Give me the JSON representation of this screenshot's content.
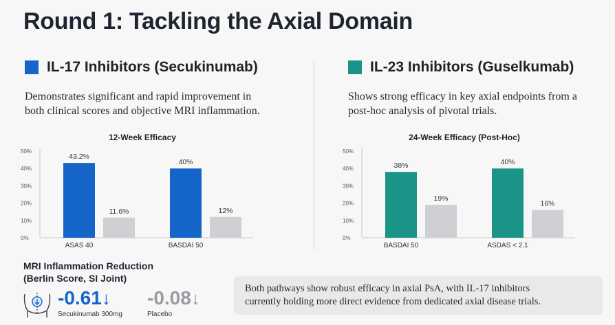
{
  "title": "Round 1: Tackling the Axial Domain",
  "left": {
    "heading": "IL-17 Inhibitors (Secukinumab)",
    "color": "#1565c8",
    "desc_line1": "Demonstrates significant and rapid improvement in",
    "desc_line2": "both clinical scores and objective MRI inflammation."
  },
  "right": {
    "heading": "IL-23 Inhibitors (Guselkumab)",
    "color": "#1a9486",
    "desc_line1": "Shows strong efficacy in key axial endpoints from a",
    "desc_line2": "post-hoc analysis of pivotal trials."
  },
  "chart_data": [
    {
      "type": "bar",
      "title": "12-Week Efficacy",
      "categories": [
        "ASAS 40",
        "BASDAI 50"
      ],
      "series": [
        {
          "values": [
            43.2,
            40
          ],
          "labels": [
            "43.2%",
            "40%"
          ],
          "color": "#1565c8"
        },
        {
          "values": [
            11.6,
            12
          ],
          "labels": [
            "11.6%",
            "12%"
          ],
          "color": "#cfd0d3"
        }
      ],
      "ylim": [
        0,
        50
      ],
      "yticks": [
        "0%",
        "10%",
        "20%",
        "30%",
        "40%",
        "50%"
      ],
      "grid": false
    },
    {
      "type": "bar",
      "title": "24-Week Efficacy (Post-Hoc)",
      "categories": [
        "BASDAI 50",
        "ASDAS < 2.1"
      ],
      "series": [
        {
          "values": [
            38,
            40
          ],
          "labels": [
            "38%",
            "40%"
          ],
          "color": "#1a9486"
        },
        {
          "values": [
            19,
            16
          ],
          "labels": [
            "19%",
            "16%"
          ],
          "color": "#cfd0d3"
        }
      ],
      "ylim": [
        0,
        50
      ],
      "yticks": [
        "0%",
        "10%",
        "20%",
        "30%",
        "40%",
        "50%"
      ],
      "grid": false
    }
  ],
  "mri": {
    "title_line1": "MRI Inflammation Reduction",
    "title_line2": "(Berlin Score, SI Joint)",
    "secukinumab_value": "-0.61",
    "secukinumab_label": "Secukinumab 300mg",
    "placebo_value": "-0.08",
    "placebo_label": "Placebo",
    "arrow": "↓",
    "secukinumab_color": "#1565c8",
    "placebo_color": "#9a9ca1",
    "icon": "si-joint-icon"
  },
  "note": {
    "line1": "Both pathways show robust efficacy in axial PsA, with IL-17 inhibitors",
    "line2": "currently holding more direct evidence from dedicated axial disease trials."
  }
}
